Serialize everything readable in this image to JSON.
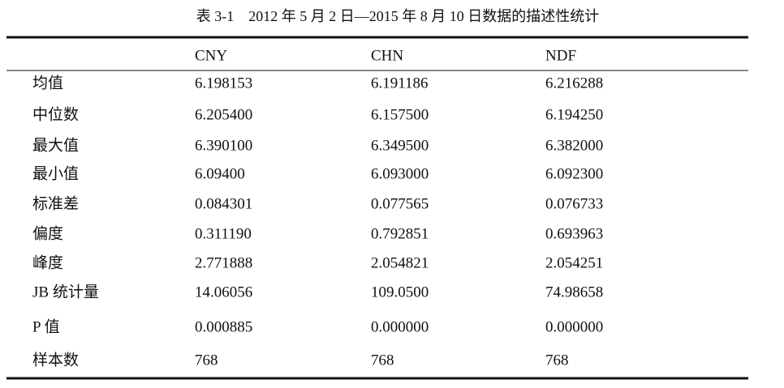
{
  "table": {
    "title": "表 3-1　2012 年 5 月 2 日—2015 年 8 月 10 日数据的描述性统计",
    "header": [
      "CNY",
      "CHN",
      "NDF"
    ],
    "rows": [
      [
        "均值",
        "6.198153",
        "6.191186",
        "6.216288"
      ],
      [
        "中位数",
        "6.205400",
        "6.157500",
        "6.194250"
      ],
      [
        "最大值",
        "6.390100",
        "6.349500",
        "6.382000"
      ],
      [
        "最小值",
        "6.09400",
        "6.093000",
        "6.092300"
      ],
      [
        "标准差",
        "0.084301",
        "0.077565",
        "0.076733"
      ],
      [
        "偏度",
        "0.311190",
        "0.792851",
        "0.693963"
      ],
      [
        "峰度",
        "2.771888",
        "2.054821",
        "2.054251"
      ],
      [
        "JB 统计量",
        "14.06056",
        "109.0500",
        "74.98658"
      ],
      [
        "P 值",
        "0.000885",
        "0.000000",
        "0.000000"
      ],
      [
        "样本数",
        "768",
        "768",
        "768"
      ]
    ]
  }
}
